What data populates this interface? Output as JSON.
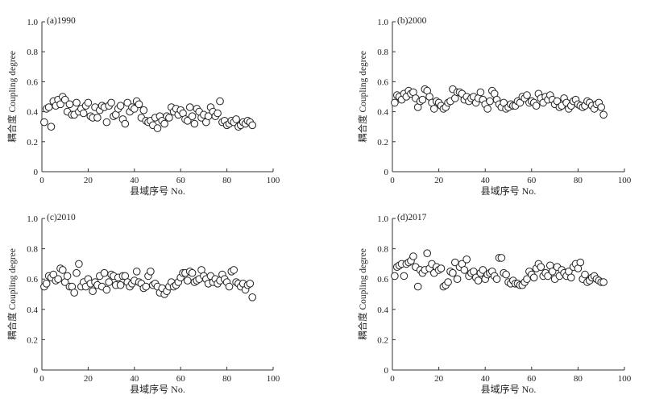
{
  "chart_data": [
    {
      "type": "scatter",
      "title": "(a)1990",
      "xlabel": "县域序号 No.",
      "ylabel": "耦合度 Coupling degree",
      "xlim": [
        0,
        100
      ],
      "ylim": [
        0,
        1.0
      ],
      "xticks": [
        "0",
        "20",
        "40",
        "60",
        "80",
        "100"
      ],
      "yticks": [
        "0",
        "0.2",
        "0.4",
        "0.6",
        "0.8",
        "1.0"
      ],
      "grid": false,
      "marker": "hollow-circle",
      "series": [
        {
          "x": [
            1,
            2,
            3,
            4,
            5,
            6,
            7,
            8,
            9,
            10,
            11,
            12,
            13,
            14,
            15,
            16,
            17,
            18,
            19,
            20,
            21,
            22,
            23,
            24,
            25,
            26,
            27,
            28,
            29,
            30,
            31,
            32,
            33,
            34,
            35,
            36,
            37,
            38,
            39,
            40,
            41,
            42,
            43,
            44,
            45,
            46,
            47,
            48,
            49,
            50,
            51,
            52,
            53,
            54,
            55,
            56,
            57,
            58,
            59,
            60,
            61,
            62,
            63,
            64,
            65,
            66,
            67,
            68,
            69,
            70,
            71,
            72,
            73,
            74,
            75,
            76,
            77,
            78,
            79,
            80,
            81,
            82,
            83,
            84,
            85,
            86,
            87,
            88,
            89,
            90,
            91
          ],
          "y": [
            0.33,
            0.42,
            0.43,
            0.3,
            0.47,
            0.44,
            0.48,
            0.45,
            0.5,
            0.48,
            0.4,
            0.45,
            0.38,
            0.38,
            0.46,
            0.4,
            0.42,
            0.39,
            0.44,
            0.46,
            0.37,
            0.36,
            0.43,
            0.36,
            0.41,
            0.44,
            0.43,
            0.33,
            0.44,
            0.46,
            0.37,
            0.38,
            0.42,
            0.44,
            0.35,
            0.32,
            0.46,
            0.4,
            0.43,
            0.42,
            0.47,
            0.45,
            0.36,
            0.41,
            0.34,
            0.33,
            0.34,
            0.31,
            0.36,
            0.29,
            0.37,
            0.34,
            0.32,
            0.37,
            0.36,
            0.43,
            0.4,
            0.42,
            0.38,
            0.41,
            0.39,
            0.35,
            0.34,
            0.43,
            0.37,
            0.32,
            0.42,
            0.4,
            0.36,
            0.38,
            0.33,
            0.37,
            0.43,
            0.4,
            0.37,
            0.39,
            0.47,
            0.33,
            0.34,
            0.31,
            0.32,
            0.34,
            0.33,
            0.35,
            0.3,
            0.31,
            0.33,
            0.32,
            0.34,
            0.33,
            0.31
          ]
        }
      ]
    },
    {
      "type": "scatter",
      "title": "(b)2000",
      "xlabel": "县域序号 No.",
      "ylabel": "耦合度 Coupling degree",
      "xlim": [
        0,
        100
      ],
      "ylim": [
        0,
        1.0
      ],
      "xticks": [
        "0",
        "20",
        "40",
        "60",
        "80",
        "100"
      ],
      "yticks": [
        "0",
        "0.2",
        "0.4",
        "0.6",
        "0.8",
        "1.0"
      ],
      "grid": false,
      "marker": "hollow-circle",
      "series": [
        {
          "x": [
            1,
            2,
            3,
            4,
            5,
            6,
            7,
            8,
            9,
            10,
            11,
            12,
            13,
            14,
            15,
            16,
            17,
            18,
            19,
            20,
            21,
            22,
            23,
            24,
            25,
            26,
            27,
            28,
            29,
            30,
            31,
            32,
            33,
            34,
            35,
            36,
            37,
            38,
            39,
            40,
            41,
            42,
            43,
            44,
            45,
            46,
            47,
            48,
            49,
            50,
            51,
            52,
            53,
            54,
            55,
            56,
            57,
            58,
            59,
            60,
            61,
            62,
            63,
            64,
            65,
            66,
            67,
            68,
            69,
            70,
            71,
            72,
            73,
            74,
            75,
            76,
            77,
            78,
            79,
            80,
            81,
            82,
            83,
            84,
            85,
            86,
            87,
            88,
            89,
            90,
            91
          ],
          "y": [
            0.46,
            0.51,
            0.5,
            0.48,
            0.52,
            0.5,
            0.54,
            0.52,
            0.53,
            0.49,
            0.43,
            0.47,
            0.48,
            0.55,
            0.54,
            0.5,
            0.46,
            0.42,
            0.47,
            0.46,
            0.44,
            0.42,
            0.43,
            0.46,
            0.47,
            0.55,
            0.49,
            0.53,
            0.53,
            0.52,
            0.48,
            0.5,
            0.47,
            0.49,
            0.5,
            0.46,
            0.49,
            0.53,
            0.48,
            0.45,
            0.42,
            0.47,
            0.54,
            0.52,
            0.48,
            0.45,
            0.43,
            0.46,
            0.42,
            0.43,
            0.45,
            0.44,
            0.44,
            0.47,
            0.46,
            0.5,
            0.49,
            0.51,
            0.46,
            0.47,
            0.46,
            0.44,
            0.52,
            0.49,
            0.46,
            0.5,
            0.48,
            0.51,
            0.48,
            0.45,
            0.47,
            0.43,
            0.44,
            0.49,
            0.46,
            0.42,
            0.44,
            0.47,
            0.48,
            0.45,
            0.44,
            0.43,
            0.44,
            0.47,
            0.46,
            0.44,
            0.42,
            0.45,
            0.46,
            0.43,
            0.38
          ]
        }
      ]
    },
    {
      "type": "scatter",
      "title": "(c)2010",
      "xlabel": "县域序号 No.",
      "ylabel": "耦合度 Coupling degree",
      "xlim": [
        0,
        100
      ],
      "ylim": [
        0,
        1.0
      ],
      "xticks": [
        "0",
        "20",
        "40",
        "60",
        "80",
        "100"
      ],
      "yticks": [
        "0",
        "0.2",
        "0.4",
        "0.6",
        "0.8",
        "1.0"
      ],
      "grid": false,
      "marker": "hollow-circle",
      "series": [
        {
          "x": [
            1,
            2,
            3,
            4,
            5,
            6,
            7,
            8,
            9,
            10,
            11,
            12,
            13,
            14,
            15,
            16,
            17,
            18,
            19,
            20,
            21,
            22,
            23,
            24,
            25,
            26,
            27,
            28,
            29,
            30,
            31,
            32,
            33,
            34,
            35,
            36,
            37,
            38,
            39,
            40,
            41,
            42,
            43,
            44,
            45,
            46,
            47,
            48,
            49,
            50,
            51,
            52,
            53,
            54,
            55,
            56,
            57,
            58,
            59,
            60,
            61,
            62,
            63,
            64,
            65,
            66,
            67,
            68,
            69,
            70,
            71,
            72,
            73,
            74,
            75,
            76,
            77,
            78,
            79,
            80,
            81,
            82,
            83,
            84,
            85,
            86,
            87,
            88,
            89,
            90,
            91
          ],
          "y": [
            0.55,
            0.57,
            0.62,
            0.61,
            0.63,
            0.59,
            0.6,
            0.67,
            0.66,
            0.58,
            0.62,
            0.55,
            0.55,
            0.51,
            0.64,
            0.7,
            0.55,
            0.58,
            0.55,
            0.6,
            0.57,
            0.52,
            0.58,
            0.56,
            0.62,
            0.55,
            0.64,
            0.53,
            0.58,
            0.63,
            0.62,
            0.56,
            0.61,
            0.56,
            0.62,
            0.62,
            0.58,
            0.55,
            0.57,
            0.59,
            0.65,
            0.58,
            0.57,
            0.54,
            0.55,
            0.62,
            0.65,
            0.56,
            0.57,
            0.55,
            0.51,
            0.54,
            0.5,
            0.52,
            0.55,
            0.58,
            0.55,
            0.56,
            0.58,
            0.61,
            0.64,
            0.64,
            0.59,
            0.65,
            0.64,
            0.58,
            0.59,
            0.6,
            0.66,
            0.62,
            0.6,
            0.57,
            0.62,
            0.58,
            0.6,
            0.57,
            0.59,
            0.63,
            0.6,
            0.58,
            0.55,
            0.65,
            0.66,
            0.58,
            0.57,
            0.55,
            0.57,
            0.53,
            0.56,
            0.57,
            0.48
          ]
        }
      ]
    },
    {
      "type": "scatter",
      "title": "(d)2017",
      "xlabel": "县域序号 No.",
      "ylabel": "耦合度 Coupling degree",
      "xlim": [
        0,
        100
      ],
      "ylim": [
        0,
        1.0
      ],
      "xticks": [
        "0",
        "20",
        "40",
        "60",
        "80",
        "100"
      ],
      "yticks": [
        "0",
        "0.2",
        "0.4",
        "0.6",
        "0.8",
        "1.0"
      ],
      "grid": false,
      "marker": "hollow-circle",
      "series": [
        {
          "x": [
            1,
            2,
            3,
            4,
            5,
            6,
            7,
            8,
            9,
            10,
            11,
            12,
            13,
            14,
            15,
            16,
            17,
            18,
            19,
            20,
            21,
            22,
            23,
            24,
            25,
            26,
            27,
            28,
            29,
            30,
            31,
            32,
            33,
            34,
            35,
            36,
            37,
            38,
            39,
            40,
            41,
            42,
            43,
            44,
            45,
            46,
            47,
            48,
            49,
            50,
            51,
            52,
            53,
            54,
            55,
            56,
            57,
            58,
            59,
            60,
            61,
            62,
            63,
            64,
            65,
            66,
            67,
            68,
            69,
            70,
            71,
            72,
            73,
            74,
            75,
            76,
            77,
            78,
            79,
            80,
            81,
            82,
            83,
            84,
            85,
            86,
            87,
            88,
            89,
            90,
            91
          ],
          "y": [
            0.62,
            0.68,
            0.69,
            0.7,
            0.62,
            0.7,
            0.71,
            0.72,
            0.75,
            0.68,
            0.55,
            0.66,
            0.64,
            0.66,
            0.77,
            0.67,
            0.7,
            0.64,
            0.68,
            0.66,
            0.67,
            0.55,
            0.56,
            0.58,
            0.65,
            0.64,
            0.71,
            0.6,
            0.68,
            0.7,
            0.66,
            0.73,
            0.62,
            0.64,
            0.65,
            0.61,
            0.59,
            0.64,
            0.66,
            0.6,
            0.63,
            0.64,
            0.65,
            0.62,
            0.6,
            0.74,
            0.74,
            0.64,
            0.63,
            0.58,
            0.57,
            0.59,
            0.57,
            0.57,
            0.56,
            0.56,
            0.58,
            0.6,
            0.65,
            0.63,
            0.61,
            0.67,
            0.7,
            0.68,
            0.62,
            0.64,
            0.62,
            0.69,
            0.65,
            0.6,
            0.68,
            0.62,
            0.66,
            0.64,
            0.62,
            0.65,
            0.61,
            0.68,
            0.7,
            0.67,
            0.71,
            0.6,
            0.63,
            0.58,
            0.59,
            0.61,
            0.62,
            0.6,
            0.59,
            0.58,
            0.58
          ]
        }
      ]
    }
  ]
}
